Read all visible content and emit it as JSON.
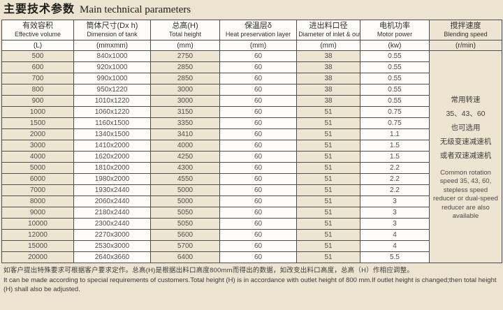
{
  "title": {
    "zh": "主要技术参数",
    "en": "Main technical parameters"
  },
  "table": {
    "columns": [
      {
        "zh": "有效容积",
        "en": "Effective volume",
        "unit": "(L)"
      },
      {
        "zh": "筒体尺寸(Dx h)",
        "en": "Dimension of tank",
        "unit": "(mmxmm)"
      },
      {
        "zh": "总高(H)",
        "en": "Total height",
        "unit": "(mm)"
      },
      {
        "zh": "保温层δ",
        "en": "Heat preservation layer",
        "unit": "(mm)"
      },
      {
        "zh": "进出料口径",
        "en": "Diameter of inlet & outlet",
        "unit": "(mm)"
      },
      {
        "zh": "电机功率",
        "en": "Motor power",
        "unit": "(kw)"
      },
      {
        "zh": "搅拌速度",
        "en": "Blending speed",
        "unit": "(r/min)"
      }
    ],
    "rows": [
      [
        "500",
        "840x1000",
        "2750",
        "60",
        "38",
        "0.55"
      ],
      [
        "600",
        "920x1000",
        "2850",
        "60",
        "38",
        "0.55"
      ],
      [
        "700",
        "990x1000",
        "2850",
        "60",
        "38",
        "0.55"
      ],
      [
        "800",
        "950x1220",
        "3000",
        "60",
        "38",
        "0.55"
      ],
      [
        "900",
        "1010x1220",
        "3000",
        "60",
        "38",
        "0.55"
      ],
      [
        "1000",
        "1060x1220",
        "3150",
        "60",
        "51",
        "0.75"
      ],
      [
        "1500",
        "1160x1500",
        "3350",
        "60",
        "51",
        "0.75"
      ],
      [
        "2000",
        "1340x1500",
        "3410",
        "60",
        "51",
        "1.1"
      ],
      [
        "3000",
        "1410x2000",
        "4000",
        "60",
        "51",
        "1.5"
      ],
      [
        "4000",
        "1620x2000",
        "4250",
        "60",
        "51",
        "1.5"
      ],
      [
        "5000",
        "1810x2000",
        "4300",
        "60",
        "51",
        "2.2"
      ],
      [
        "6000",
        "1980x2000",
        "4550",
        "60",
        "51",
        "2.2"
      ],
      [
        "7000",
        "1930x2440",
        "5000",
        "60",
        "51",
        "2.2"
      ],
      [
        "8000",
        "2060x2440",
        "5000",
        "60",
        "51",
        "3"
      ],
      [
        "9000",
        "2180x2440",
        "5050",
        "60",
        "51",
        "3"
      ],
      [
        "10000",
        "2300x2440",
        "5050",
        "60",
        "51",
        "3"
      ],
      [
        "12000",
        "2270x3000",
        "5600",
        "60",
        "51",
        "4"
      ],
      [
        "15000",
        "2530x3000",
        "5700",
        "60",
        "51",
        "4"
      ],
      [
        "20000",
        "2640x3660",
        "6400",
        "60",
        "51",
        "5.5"
      ]
    ],
    "speed_note": {
      "zh_lines": [
        "常用转速",
        "35、43、60",
        "也可选用",
        "无级变速减速机",
        "或者双速减速机"
      ],
      "en": "Common rotation speed 35, 43, 60, stepless speed reducer or dual-speed reducer are also available"
    }
  },
  "footnote": {
    "zh": "如客户提出特殊要求可根据客户要求定作。总高(H)是根据出料口高度800mm而得出的数据，如改变出料口高度，总高（H）作相应调整。",
    "en": "It can be made according to special requirements of customers.Total height (H) is in accordance with outlet height of 800 mm.If outlet height is changed;then total height (H) shall also be adjusted."
  },
  "colors": {
    "page_bg": "#ece3d1",
    "beige_cell": "#ede4d2",
    "white_cell": "#fdfcf8",
    "border": "#4d4d4d",
    "title_text": "#1c1c1a"
  }
}
